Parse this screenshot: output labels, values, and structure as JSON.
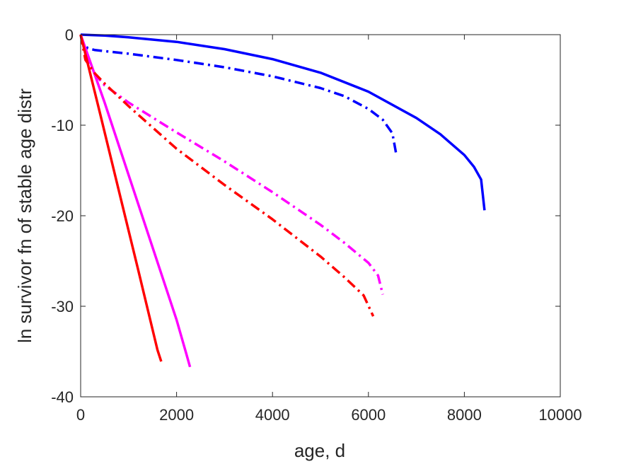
{
  "chart_data": {
    "type": "line",
    "title": "",
    "xlabel": "age, d",
    "ylabel": "ln survivor fn of stable age distr",
    "xlim": [
      0,
      10000
    ],
    "ylim": [
      -40,
      0
    ],
    "xticks": [
      0,
      2000,
      4000,
      6000,
      8000,
      10000
    ],
    "yticks": [
      0,
      -10,
      -20,
      -30,
      -40
    ],
    "xtick_labels": [
      "0",
      "2000",
      "4000",
      "6000",
      "8000",
      "10000"
    ],
    "ytick_labels": [
      "0",
      "-10",
      "-20",
      "-30",
      "-40"
    ],
    "grid": false,
    "legend": "none",
    "series": [
      {
        "color": "#0000ff",
        "style": "solid",
        "x": [
          0,
          500,
          1000,
          2000,
          3000,
          4000,
          5000,
          6000,
          7000,
          7500,
          8000,
          8200,
          8350,
          8420
        ],
        "y": [
          0,
          -0.1,
          -0.3,
          -0.8,
          -1.6,
          -2.7,
          -4.2,
          -6.3,
          -9.2,
          -11.0,
          -13.3,
          -14.6,
          -16.0,
          -19.4
        ]
      },
      {
        "color": "#0000ff",
        "style": "dashdot",
        "x": [
          0,
          50,
          150,
          300,
          1000,
          2000,
          3000,
          4000,
          5000,
          5500,
          6000,
          6300,
          6500,
          6580
        ],
        "y": [
          0,
          -1.0,
          -1.5,
          -1.7,
          -2.1,
          -2.8,
          -3.6,
          -4.6,
          -5.9,
          -6.8,
          -8.2,
          -9.4,
          -10.9,
          -13.2
        ]
      },
      {
        "color": "#ff00ff",
        "style": "solid",
        "x": [
          0,
          500,
          1000,
          1500,
          2000,
          2200,
          2280
        ],
        "y": [
          0,
          -7.5,
          -15.5,
          -23.5,
          -31.5,
          -35.2,
          -36.7
        ]
      },
      {
        "color": "#ff00ff",
        "style": "dashdot",
        "x": [
          0,
          100,
          300,
          500,
          1000,
          2000,
          3000,
          4000,
          5000,
          5500,
          6000,
          6200,
          6300
        ],
        "y": [
          0,
          -2.0,
          -4.4,
          -5.6,
          -7.5,
          -10.8,
          -14.0,
          -17.4,
          -21.0,
          -23.0,
          -25.2,
          -26.6,
          -28.7
        ]
      },
      {
        "color": "#ff0000",
        "style": "solid",
        "x": [
          0,
          400,
          800,
          1200,
          1600,
          1680
        ],
        "y": [
          0,
          -8.6,
          -17.3,
          -26.0,
          -34.8,
          -36.1
        ]
      },
      {
        "color": "#ff0000",
        "style": "dashdot",
        "x": [
          0,
          100,
          300,
          500,
          1000,
          2000,
          3000,
          4000,
          5000,
          5500,
          5900,
          6100
        ],
        "y": [
          0,
          -2.8,
          -4.3,
          -5.4,
          -7.9,
          -12.6,
          -16.6,
          -20.4,
          -24.5,
          -26.8,
          -28.8,
          -31.1
        ]
      }
    ]
  }
}
